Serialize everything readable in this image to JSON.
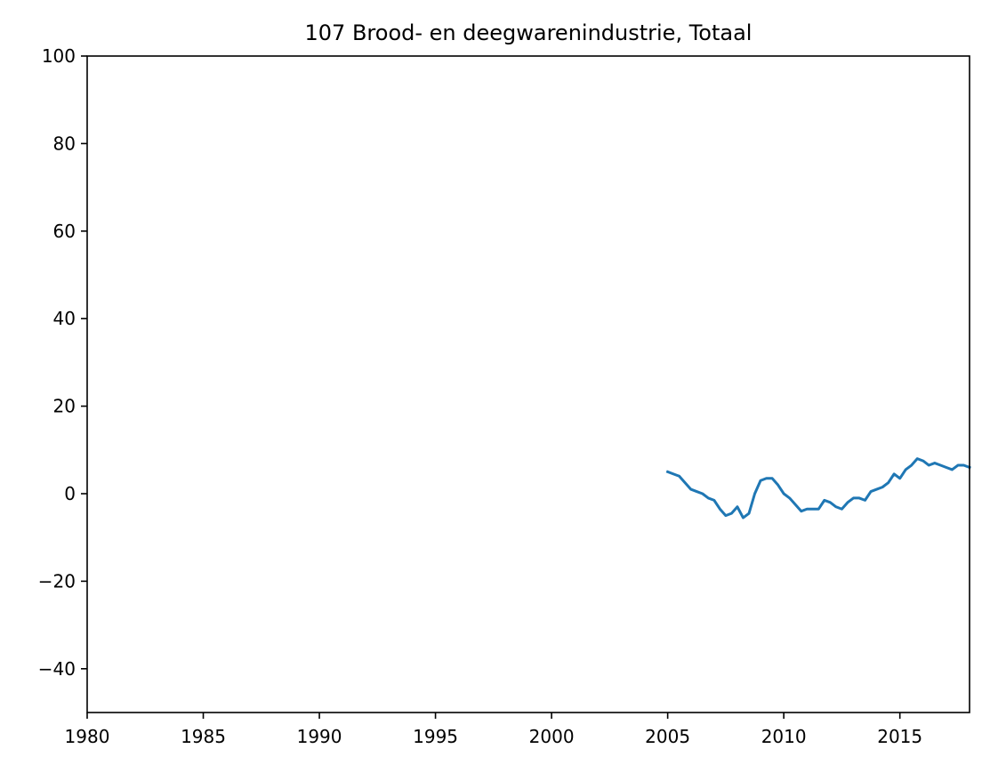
{
  "chart_data": {
    "type": "line",
    "title": "107 Brood- en deegwarenindustrie, Totaal",
    "xlabel": "",
    "ylabel": "",
    "xlim": [
      1980,
      2018
    ],
    "ylim": [
      -50,
      100
    ],
    "grid": false,
    "x_ticks": [
      1980,
      1985,
      1990,
      1995,
      2000,
      2005,
      2010,
      2015
    ],
    "x_tick_labels": [
      "1980",
      "1985",
      "1990",
      "1995",
      "2000",
      "2005",
      "2010",
      "2015"
    ],
    "y_ticks": [
      -40,
      -20,
      0,
      20,
      40,
      60,
      80,
      100
    ],
    "y_tick_labels": [
      "−40",
      "−20",
      "0",
      "20",
      "40",
      "60",
      "80",
      "100"
    ],
    "series": [
      {
        "color": "#1f77b4",
        "x": [
          2005.0,
          2005.25,
          2005.5,
          2005.75,
          2006.0,
          2006.25,
          2006.5,
          2006.75,
          2007.0,
          2007.25,
          2007.5,
          2007.75,
          2008.0,
          2008.25,
          2008.5,
          2008.75,
          2009.0,
          2009.25,
          2009.5,
          2009.75,
          2010.0,
          2010.25,
          2010.5,
          2010.75,
          2011.0,
          2011.25,
          2011.5,
          2011.75,
          2012.0,
          2012.25,
          2012.5,
          2012.75,
          2013.0,
          2013.25,
          2013.5,
          2013.75,
          2014.0,
          2014.25,
          2014.5,
          2014.75,
          2015.0,
          2015.25,
          2015.5,
          2015.75,
          2016.0,
          2016.25,
          2016.5,
          2016.75,
          2017.0,
          2017.25,
          2017.5,
          2017.75,
          2018.0
        ],
        "y": [
          5.0,
          4.5,
          4.0,
          2.5,
          1.0,
          0.5,
          0.0,
          -1.0,
          -1.5,
          -3.5,
          -5.0,
          -4.5,
          -3.0,
          -5.5,
          -4.5,
          0.0,
          3.0,
          3.5,
          3.5,
          2.0,
          0.0,
          -1.0,
          -2.5,
          -4.0,
          -3.5,
          -3.5,
          -3.5,
          -1.5,
          -2.0,
          -3.0,
          -3.5,
          -2.0,
          -1.0,
          -1.0,
          -1.5,
          0.5,
          1.0,
          1.5,
          2.5,
          4.5,
          3.5,
          5.5,
          6.5,
          8.0,
          7.5,
          6.5,
          7.0,
          6.5,
          6.0,
          5.5,
          6.5,
          6.5,
          6.0
        ]
      }
    ]
  }
}
